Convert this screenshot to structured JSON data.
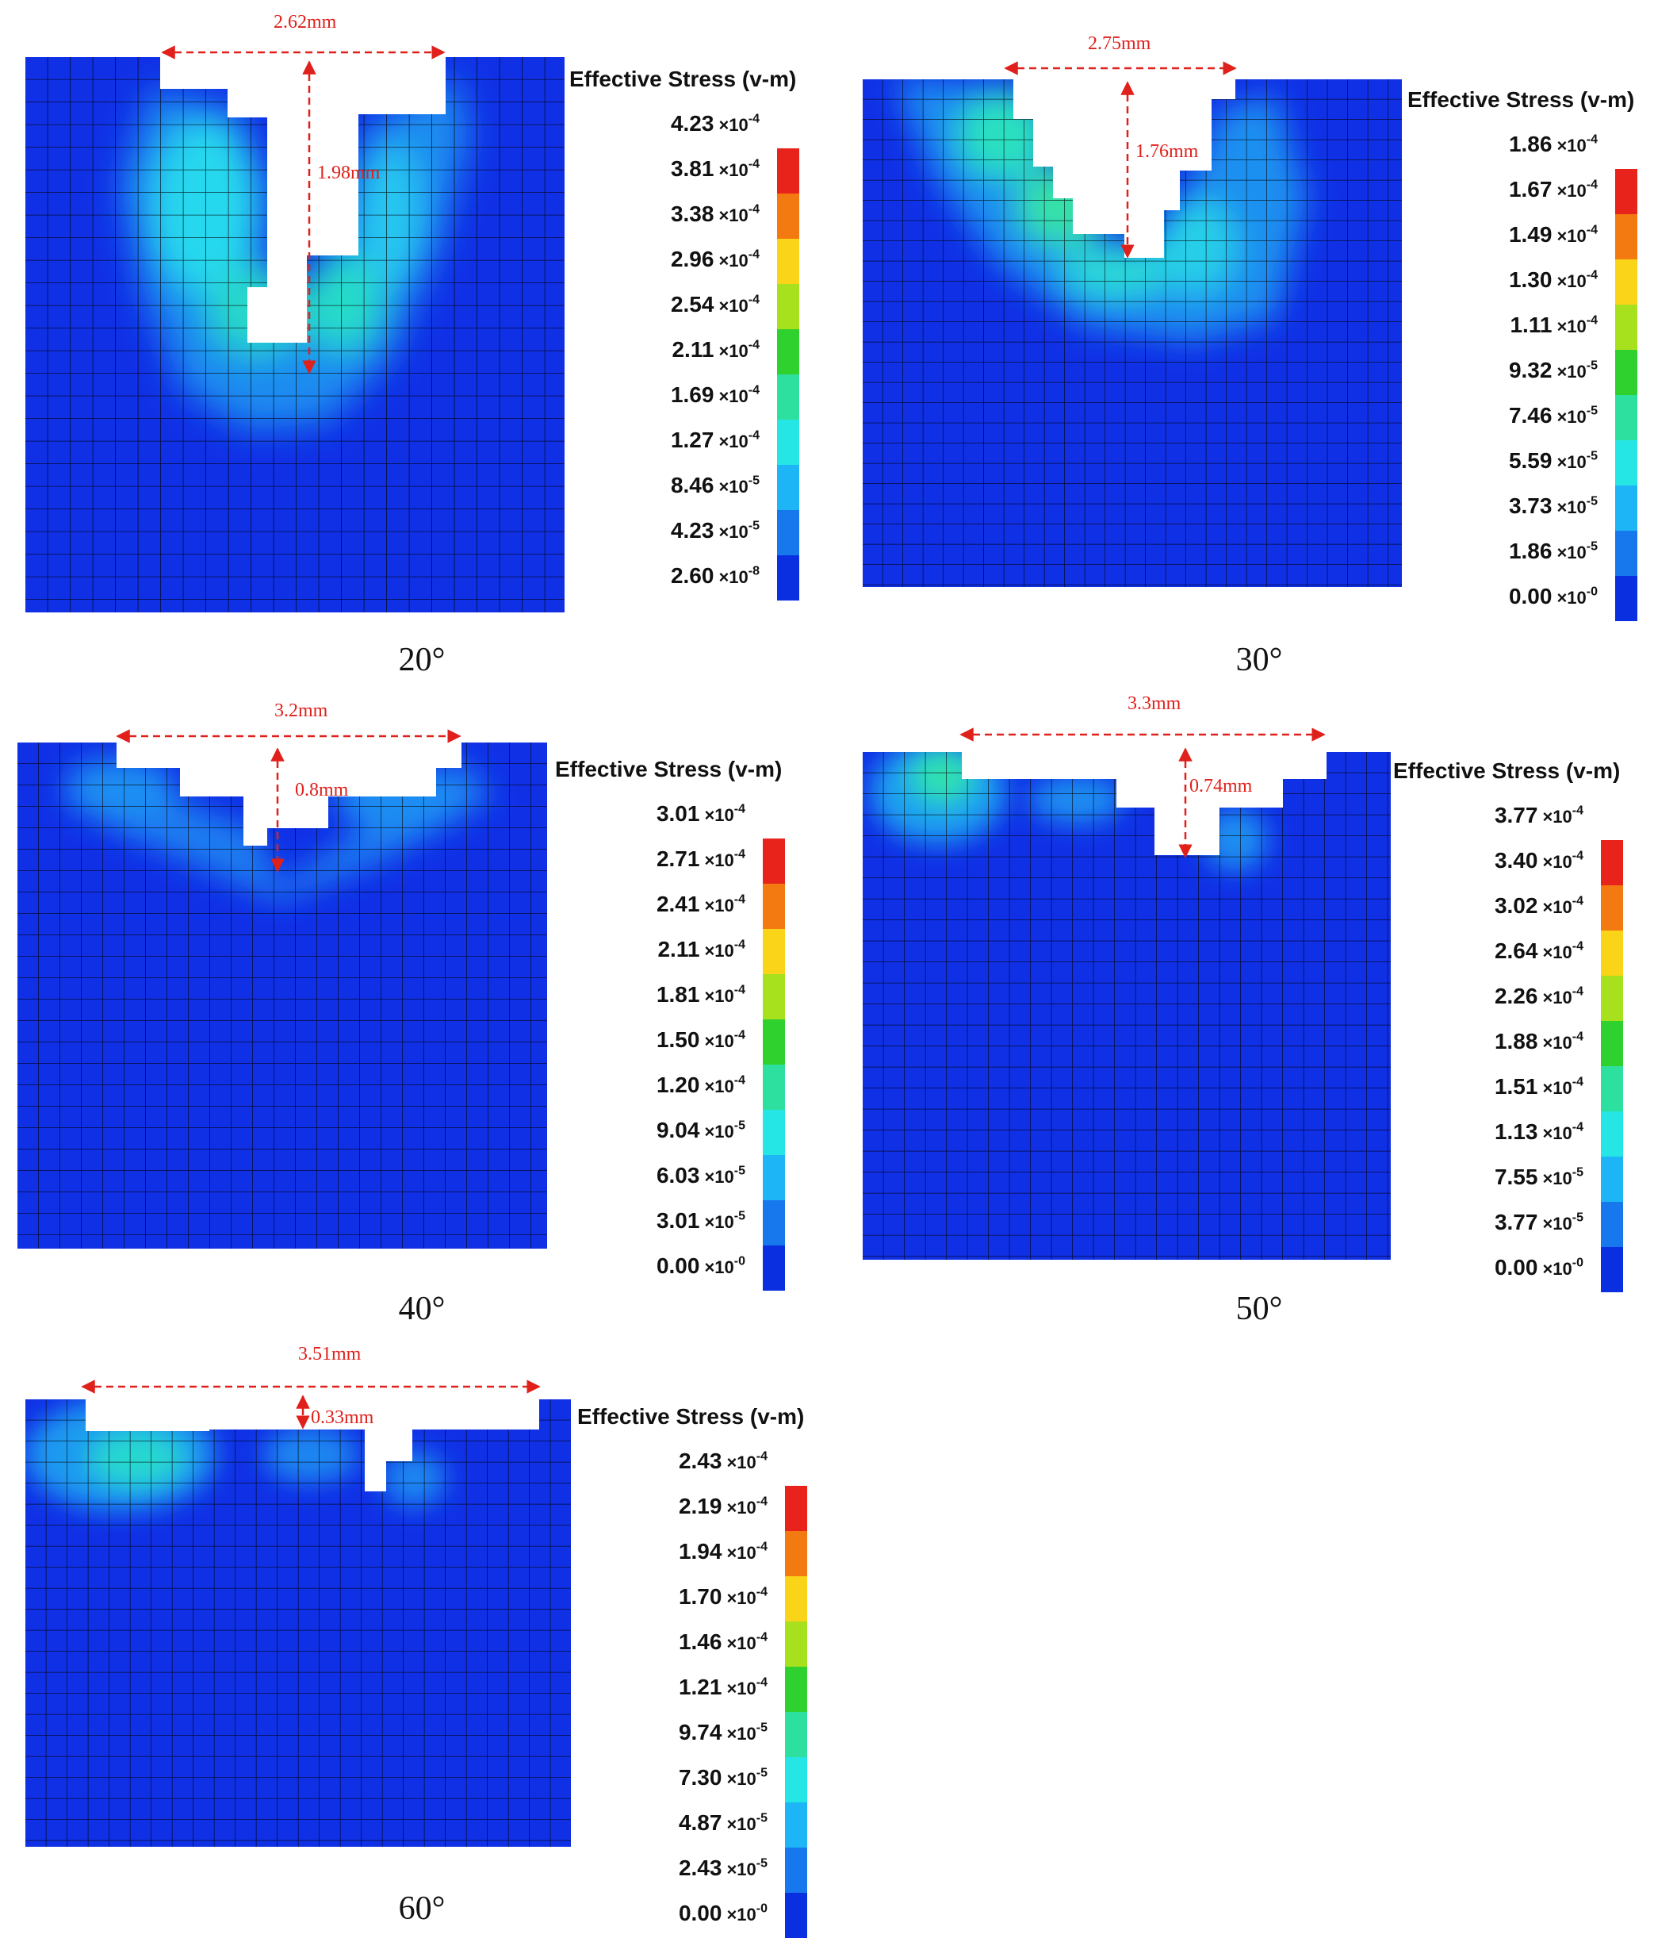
{
  "legend_title": "Effective Stress (v-m)",
  "colors": [
    "#e8231b",
    "#f37a10",
    "#f9d418",
    "#a7e01d",
    "#2fd12f",
    "#2ee0a0",
    "#25e5e5",
    "#1db5f5",
    "#1778ee",
    "#0a2fe0"
  ],
  "panels": [
    {
      "caption": "20°",
      "width_label": "2.62mm",
      "depth_label": "1.98mm",
      "ticks": [
        {
          "m": "4.23",
          "e": "-4"
        },
        {
          "m": "3.81",
          "e": "-4"
        },
        {
          "m": "3.38",
          "e": "-4"
        },
        {
          "m": "2.96",
          "e": "-4"
        },
        {
          "m": "2.54",
          "e": "-4"
        },
        {
          "m": "2.11",
          "e": "-4"
        },
        {
          "m": "1.69",
          "e": "-4"
        },
        {
          "m": "1.27",
          "e": "-4"
        },
        {
          "m": "8.46",
          "e": "-5"
        },
        {
          "m": "4.23",
          "e": "-5"
        },
        {
          "m": "2.60",
          "e": "-8"
        }
      ]
    },
    {
      "caption": "30°",
      "width_label": "2.75mm",
      "depth_label": "1.76mm",
      "ticks": [
        {
          "m": "1.86",
          "e": "-4"
        },
        {
          "m": "1.67",
          "e": "-4"
        },
        {
          "m": "1.49",
          "e": "-4"
        },
        {
          "m": "1.30",
          "e": "-4"
        },
        {
          "m": "1.11",
          "e": "-4"
        },
        {
          "m": "9.32",
          "e": "-5"
        },
        {
          "m": "7.46",
          "e": "-5"
        },
        {
          "m": "5.59",
          "e": "-5"
        },
        {
          "m": "3.73",
          "e": "-5"
        },
        {
          "m": "1.86",
          "e": "-5"
        },
        {
          "m": "0.00",
          "e": "-0"
        }
      ]
    },
    {
      "caption": "40°",
      "width_label": "3.2mm",
      "depth_label": "0.8mm",
      "ticks": [
        {
          "m": "3.01",
          "e": "-4"
        },
        {
          "m": "2.71",
          "e": "-4"
        },
        {
          "m": "2.41",
          "e": "-4"
        },
        {
          "m": "2.11",
          "e": "-4"
        },
        {
          "m": "1.81",
          "e": "-4"
        },
        {
          "m": "1.50",
          "e": "-4"
        },
        {
          "m": "1.20",
          "e": "-4"
        },
        {
          "m": "9.04",
          "e": "-5"
        },
        {
          "m": "6.03",
          "e": "-5"
        },
        {
          "m": "3.01",
          "e": "-5"
        },
        {
          "m": "0.00",
          "e": "-0"
        }
      ]
    },
    {
      "caption": "50°",
      "width_label": "3.3mm",
      "depth_label": "0.74mm",
      "ticks": [
        {
          "m": "3.77",
          "e": "-4"
        },
        {
          "m": "3.40",
          "e": "-4"
        },
        {
          "m": "3.02",
          "e": "-4"
        },
        {
          "m": "2.64",
          "e": "-4"
        },
        {
          "m": "2.26",
          "e": "-4"
        },
        {
          "m": "1.88",
          "e": "-4"
        },
        {
          "m": "1.51",
          "e": "-4"
        },
        {
          "m": "1.13",
          "e": "-4"
        },
        {
          "m": "7.55",
          "e": "-5"
        },
        {
          "m": "3.77",
          "e": "-5"
        },
        {
          "m": "0.00",
          "e": "-0"
        }
      ]
    },
    {
      "caption": "60°",
      "width_label": "3.51mm",
      "depth_label": "0.33mm",
      "ticks": [
        {
          "m": "2.43",
          "e": "-4"
        },
        {
          "m": "2.19",
          "e": "-4"
        },
        {
          "m": "1.94",
          "e": "-4"
        },
        {
          "m": "1.70",
          "e": "-4"
        },
        {
          "m": "1.46",
          "e": "-4"
        },
        {
          "m": "1.21",
          "e": "-4"
        },
        {
          "m": "9.74",
          "e": "-5"
        },
        {
          "m": "7.30",
          "e": "-5"
        },
        {
          "m": "4.87",
          "e": "-5"
        },
        {
          "m": "2.43",
          "e": "-5"
        },
        {
          "m": "0.00",
          "e": "-0"
        }
      ]
    }
  ]
}
